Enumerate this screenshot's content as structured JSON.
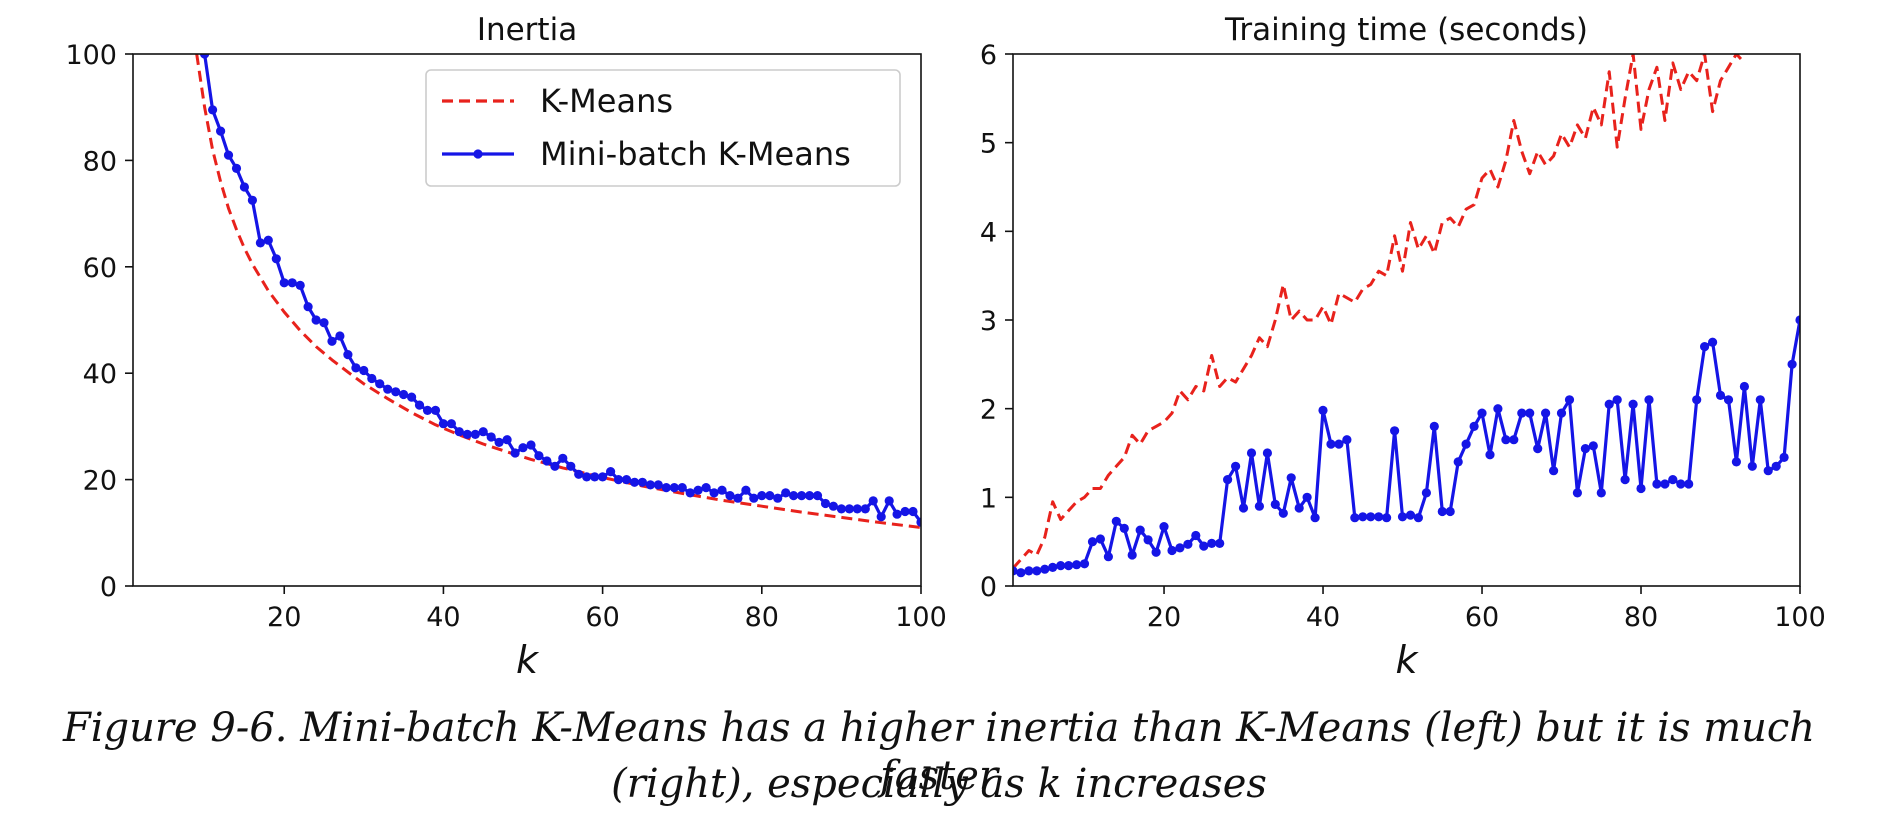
{
  "colors": {
    "kmeans": "#e8221c",
    "minibatch": "#1515e6",
    "axis": "#111111",
    "background": "#ffffff"
  },
  "chart_data": [
    {
      "type": "line",
      "title": "Inertia",
      "xlabel": "k",
      "ylabel": "",
      "xlim": [
        1,
        100
      ],
      "ylim": [
        0,
        100
      ],
      "xticks": [
        20,
        40,
        60,
        80,
        100
      ],
      "yticks": [
        0,
        20,
        40,
        60,
        80,
        100
      ],
      "grid": false,
      "legend": {
        "placement": "top-right",
        "entries": [
          "K-Means",
          "Mini-batch K-Means"
        ]
      },
      "series": [
        {
          "name": "K-Means",
          "style": "dashed",
          "color": "#e8221c",
          "x": [
            9,
            10,
            11,
            12,
            13,
            14,
            15,
            16,
            18,
            20,
            22,
            24,
            26,
            28,
            30,
            33,
            36,
            39,
            42,
            45,
            48,
            51,
            55,
            60,
            65,
            70,
            75,
            80,
            85,
            90,
            95,
            100
          ],
          "y": [
            100,
            90,
            82,
            76,
            71,
            67,
            63.5,
            60.5,
            55.5,
            51.5,
            48,
            45,
            42.5,
            40.2,
            38,
            35.2,
            32.6,
            30.3,
            28.4,
            26.7,
            25.2,
            23.8,
            22.2,
            20.4,
            18.8,
            17.4,
            16.1,
            15,
            13.9,
            12.9,
            11.9,
            11
          ]
        },
        {
          "name": "Mini-batch K-Means",
          "style": "solid-markers",
          "color": "#1515e6",
          "x": [
            10,
            11,
            12,
            13,
            14,
            15,
            16,
            17,
            18,
            19,
            20,
            21,
            22,
            23,
            24,
            25,
            26,
            27,
            28,
            29,
            30,
            31,
            32,
            33,
            34,
            35,
            36,
            37,
            38,
            39,
            40,
            41,
            42,
            43,
            44,
            45,
            46,
            47,
            48,
            49,
            50,
            51,
            52,
            53,
            54,
            55,
            56,
            57,
            58,
            59,
            60,
            61,
            62,
            63,
            64,
            65,
            66,
            67,
            68,
            69,
            70,
            71,
            72,
            73,
            74,
            75,
            76,
            77,
            78,
            79,
            80,
            81,
            82,
            83,
            84,
            85,
            86,
            87,
            88,
            89,
            90,
            91,
            92,
            93,
            94,
            95,
            96,
            97,
            98,
            99,
            100
          ],
          "y": [
            100,
            89.5,
            85.5,
            81,
            78.5,
            75,
            72.5,
            64.5,
            65,
            61.5,
            57,
            57,
            56.5,
            52.5,
            50,
            49.5,
            46,
            47,
            43.5,
            41,
            40.5,
            39,
            38,
            37,
            36.5,
            36,
            35.5,
            34,
            33,
            33,
            30.5,
            30.5,
            29,
            28.5,
            28.5,
            29,
            28,
            27,
            27.5,
            25,
            26,
            26.5,
            24.5,
            23.5,
            22.5,
            24,
            22.5,
            21,
            20.5,
            20.5,
            20.5,
            21.5,
            20,
            20,
            19.5,
            19.5,
            19,
            19,
            18.5,
            18.5,
            18.5,
            17.5,
            18,
            18.5,
            17.5,
            18,
            17,
            16.5,
            18,
            16.5,
            17,
            17,
            16.5,
            17.5,
            17,
            17,
            17,
            17,
            15.5,
            15,
            14.5,
            14.5,
            14.5,
            14.5,
            16,
            13,
            16,
            13.5,
            14,
            14,
            12
          ]
        }
      ]
    },
    {
      "type": "line",
      "title": "Training time (seconds)",
      "xlabel": "k",
      "ylabel": "",
      "xlim": [
        1,
        100
      ],
      "ylim": [
        0,
        6
      ],
      "xticks": [
        20,
        40,
        60,
        80,
        100
      ],
      "yticks": [
        0,
        1,
        2,
        3,
        4,
        5,
        6
      ],
      "grid": false,
      "series": [
        {
          "name": "K-Means",
          "style": "dashed",
          "color": "#e8221c",
          "x": [
            1,
            2,
            3,
            4,
            5,
            6,
            7,
            8,
            9,
            10,
            11,
            12,
            13,
            14,
            15,
            16,
            17,
            18,
            19,
            20,
            21,
            22,
            23,
            24,
            25,
            26,
            27,
            28,
            29,
            30,
            31,
            32,
            33,
            34,
            35,
            36,
            37,
            38,
            39,
            40,
            41,
            42,
            43,
            44,
            45,
            46,
            47,
            48,
            49,
            50,
            51,
            52,
            53,
            54,
            55,
            56,
            57,
            58,
            59,
            60,
            61,
            62,
            63,
            64,
            65,
            66,
            67,
            68,
            69,
            70,
            71,
            72,
            73,
            74,
            75,
            76,
            77,
            78,
            79,
            80,
            81,
            82,
            83,
            84,
            85,
            86,
            87,
            88,
            89,
            90,
            91,
            92,
            93
          ],
          "y": [
            0.2,
            0.3,
            0.4,
            0.35,
            0.55,
            0.95,
            0.75,
            0.85,
            0.95,
            1.0,
            1.1,
            1.1,
            1.25,
            1.35,
            1.45,
            1.7,
            1.6,
            1.75,
            1.8,
            1.85,
            1.95,
            2.2,
            2.1,
            2.25,
            2.2,
            2.6,
            2.25,
            2.35,
            2.3,
            2.45,
            2.6,
            2.8,
            2.7,
            3.0,
            3.4,
            3.0,
            3.1,
            3.0,
            3.0,
            3.15,
            2.95,
            3.3,
            3.25,
            3.2,
            3.35,
            3.4,
            3.55,
            3.5,
            3.95,
            3.55,
            4.1,
            3.8,
            3.95,
            3.75,
            4.1,
            4.15,
            4.05,
            4.25,
            4.3,
            4.6,
            4.7,
            4.5,
            4.8,
            5.25,
            4.9,
            4.65,
            4.9,
            4.75,
            4.85,
            5.1,
            4.95,
            5.2,
            5.05,
            5.4,
            5.2,
            5.8,
            4.95,
            5.5,
            6.0,
            5.15,
            5.6,
            5.85,
            5.25,
            5.9,
            5.6,
            5.8,
            5.7,
            6.0,
            5.35,
            5.7,
            5.85,
            6.0,
            5.9
          ]
        },
        {
          "name": "Mini-batch K-Means",
          "style": "solid-markers",
          "color": "#1515e6",
          "x": [
            1,
            2,
            3,
            4,
            5,
            6,
            7,
            8,
            9,
            10,
            11,
            12,
            13,
            14,
            15,
            16,
            17,
            18,
            19,
            20,
            21,
            22,
            23,
            24,
            25,
            26,
            27,
            28,
            29,
            30,
            31,
            32,
            33,
            34,
            35,
            36,
            37,
            38,
            39,
            40,
            41,
            42,
            43,
            44,
            45,
            46,
            47,
            48,
            49,
            50,
            51,
            52,
            53,
            54,
            55,
            56,
            57,
            58,
            59,
            60,
            61,
            62,
            63,
            64,
            65,
            66,
            67,
            68,
            69,
            70,
            71,
            72,
            73,
            74,
            75,
            76,
            77,
            78,
            79,
            80,
            81,
            82,
            83,
            84,
            85,
            86,
            87,
            88,
            89,
            90,
            91,
            92,
            93,
            94,
            95,
            96,
            97,
            98,
            99,
            100
          ],
          "y": [
            0.17,
            0.15,
            0.17,
            0.17,
            0.19,
            0.21,
            0.23,
            0.23,
            0.24,
            0.25,
            0.5,
            0.53,
            0.33,
            0.73,
            0.65,
            0.35,
            0.63,
            0.52,
            0.38,
            0.67,
            0.4,
            0.43,
            0.47,
            0.57,
            0.45,
            0.48,
            0.48,
            1.2,
            1.35,
            0.88,
            1.5,
            0.9,
            1.5,
            0.92,
            0.82,
            1.22,
            0.88,
            1.0,
            0.77,
            1.98,
            1.6,
            1.6,
            1.65,
            0.77,
            0.78,
            0.78,
            0.78,
            0.77,
            1.75,
            0.78,
            0.8,
            0.77,
            1.05,
            1.8,
            0.84,
            0.84,
            1.4,
            1.6,
            1.8,
            1.95,
            1.48,
            2.0,
            1.65,
            1.65,
            1.95,
            1.95,
            1.55,
            1.95,
            1.3,
            1.95,
            2.1,
            1.05,
            1.55,
            1.58,
            1.05,
            2.05,
            2.1,
            1.2,
            2.05,
            1.1,
            2.1,
            1.15,
            1.15,
            1.2,
            1.15,
            1.15,
            2.1,
            2.7,
            2.75,
            2.15,
            2.1,
            1.4,
            2.25,
            1.35,
            2.1,
            1.3,
            1.35,
            1.45,
            2.5,
            3.0
          ]
        }
      ]
    }
  ],
  "caption": {
    "line1": "Figure 9-6. Mini-batch K-Means has a higher inertia than K-Means (left) but it is much faster",
    "line2": "(right), especially as k increases"
  }
}
